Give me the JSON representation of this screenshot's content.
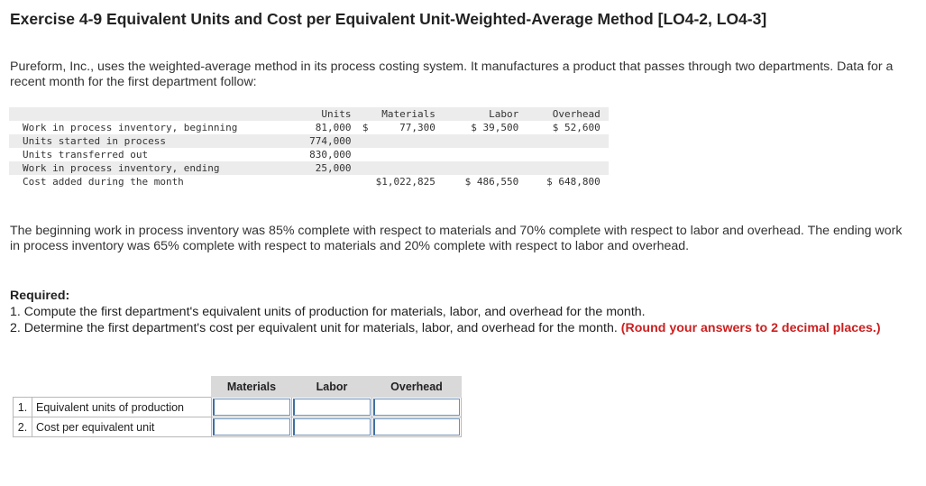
{
  "title": "Exercise 4-9 Equivalent Units and Cost per Equivalent Unit-Weighted-Average Method [LO4-2, LO4-3]",
  "intro": "Pureform, Inc., uses the weighted-average method in its process costing system. It manufactures a product that passes through two departments. Data for a recent month for the first department follow:",
  "data_table": {
    "headers": {
      "units": "Units",
      "materials": "Materials",
      "labor": "Labor",
      "overhead": "Overhead"
    },
    "rows": [
      {
        "label": "Work in process inventory, beginning",
        "units": "81,000",
        "dsign": "$",
        "materials": "77,300",
        "labor": "$ 39,500",
        "overhead": "$ 52,600"
      },
      {
        "label": "Units started in process",
        "units": "774,000",
        "dsign": "",
        "materials": "",
        "labor": "",
        "overhead": ""
      },
      {
        "label": "Units transferred out",
        "units": "830,000",
        "dsign": "",
        "materials": "",
        "labor": "",
        "overhead": ""
      },
      {
        "label": "Work in process inventory, ending",
        "units": "25,000",
        "dsign": "",
        "materials": "",
        "labor": "",
        "overhead": ""
      },
      {
        "label": "Cost added during the month",
        "units": "",
        "dsign": "",
        "materials": "$1,022,825",
        "labor": "$ 486,550",
        "overhead": "$ 648,800"
      }
    ]
  },
  "completion_text": "The beginning work in process inventory was 85% complete with respect to materials and 70% complete with respect to labor and overhead. The ending work in process inventory was 65% complete with respect to materials and 20% complete with respect to labor and overhead.",
  "required": {
    "heading": "Required:",
    "item1": "1. Compute the first department's equivalent units of production for materials, labor, and overhead for the month.",
    "item2": "2. Determine the first department's cost per equivalent unit for materials, labor, and overhead for the month.",
    "round_note": "(Round your answers to 2 decimal places.)"
  },
  "answer_table": {
    "headers": {
      "materials": "Materials",
      "labor": "Labor",
      "overhead": "Overhead"
    },
    "rows": [
      {
        "num": "1.",
        "label": "Equivalent units of production",
        "materials": "",
        "labor": "",
        "overhead": ""
      },
      {
        "num": "2.",
        "label": "Cost per equivalent unit",
        "materials": "",
        "labor": "",
        "overhead": ""
      }
    ]
  }
}
